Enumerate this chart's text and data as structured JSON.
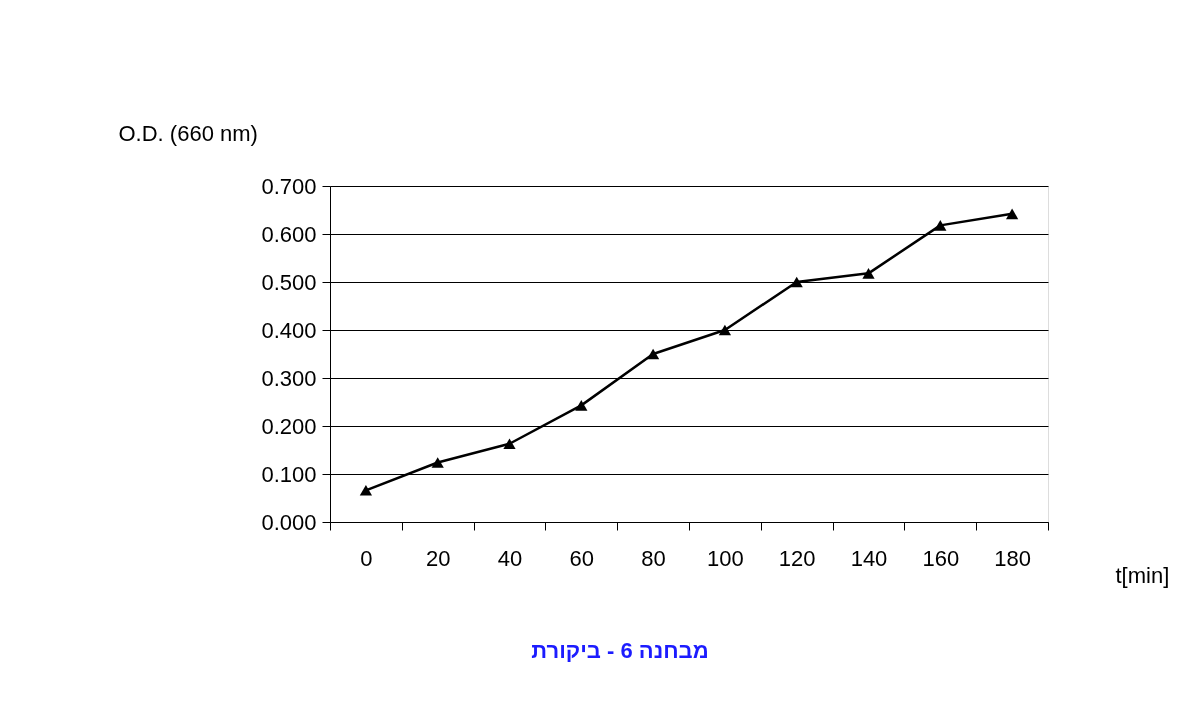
{
  "chart_data": {
    "type": "line",
    "title": "מבחנה 6 - ביקורת",
    "xlabel": "t[min]",
    "ylabel": "O.D. (660 nm)",
    "categories": [
      "0",
      "20",
      "40",
      "60",
      "80",
      "100",
      "120",
      "140",
      "160",
      "180"
    ],
    "series": [
      {
        "color": "#000000",
        "values": [
          0.066,
          0.124,
          0.163,
          0.243,
          0.35,
          0.4,
          0.5,
          0.518,
          0.618,
          0.642
        ]
      }
    ],
    "ylim": [
      0,
      0.7
    ],
    "yticks": [
      {
        "value": 0,
        "label": "0.000"
      },
      {
        "value": 0.1,
        "label": "0.100"
      },
      {
        "value": 0.2,
        "label": "0.200"
      },
      {
        "value": 0.3,
        "label": "0.300"
      },
      {
        "value": 0.4,
        "label": "0.400"
      },
      {
        "value": 0.5,
        "label": "0.500"
      },
      {
        "value": 0.6,
        "label": "0.600"
      },
      {
        "value": 0.7,
        "label": "0.700"
      }
    ],
    "grid": "y",
    "marker": "triangle",
    "line_style": "solid"
  }
}
